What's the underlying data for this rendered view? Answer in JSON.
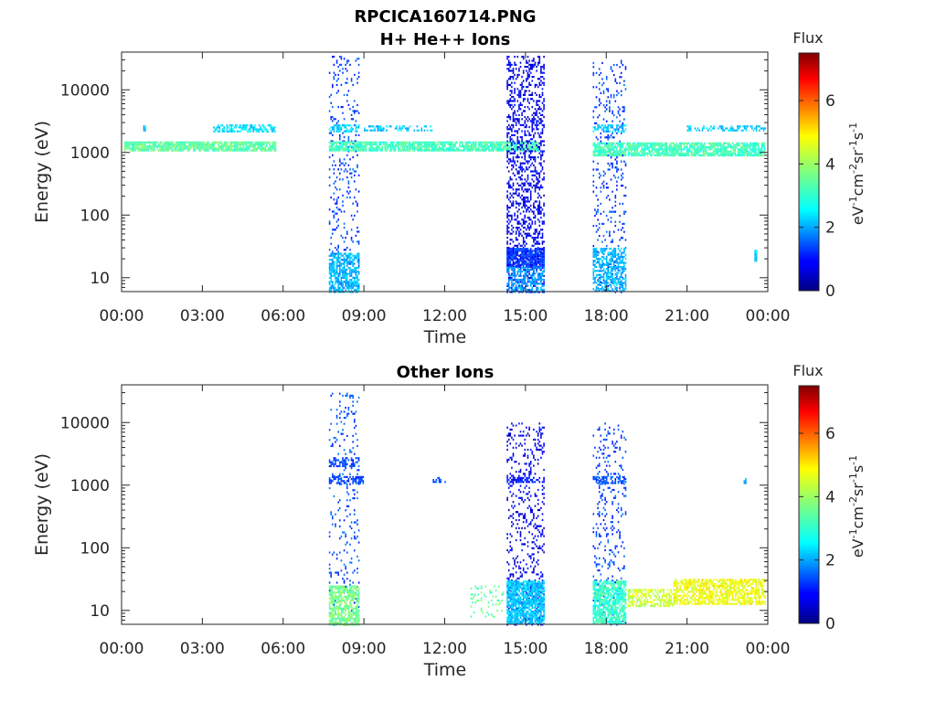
{
  "figure": {
    "title": "RPCICA160714.PNG",
    "colors": {
      "axis": "#262626",
      "background": "#ffffff",
      "colormap": "jet"
    }
  },
  "colorbar": {
    "title": "Flux",
    "unit_base": [
      "eV",
      "cm",
      "sr",
      "s"
    ],
    "unit_exponents": [
      "-1",
      "-2",
      "-1",
      "-1"
    ],
    "ticks": [
      "0",
      "2",
      "4",
      "6"
    ]
  },
  "chart_data": [
    {
      "type": "heatmap",
      "title": "H+ He++ Ions",
      "xlabel": "Time",
      "ylabel": "Energy (eV)",
      "x_ticks": [
        "00:00",
        "03:00",
        "06:00",
        "09:00",
        "12:00",
        "15:00",
        "18:00",
        "21:00",
        "00:00"
      ],
      "y_ticks": [
        "10",
        "100",
        "1000",
        "10000"
      ],
      "y_scale": "log",
      "xlim_hours": [
        0,
        24
      ],
      "ylim": [
        6,
        40000
      ],
      "clim": [
        0,
        7.5
      ],
      "colorbar_label": "Flux",
      "features": [
        {
          "t0": 0.1,
          "t1": 5.7,
          "e0": 1050,
          "e1": 1500,
          "v": 3.5,
          "density": 0.85
        },
        {
          "t0": 3.4,
          "t1": 5.7,
          "e0": 2200,
          "e1": 2800,
          "v": 2.6,
          "density": 0.6
        },
        {
          "t0": 0.8,
          "t1": 0.9,
          "e0": 2300,
          "e1": 2700,
          "v": 2.5,
          "density": 0.7
        },
        {
          "t0": 7.7,
          "t1": 8.8,
          "e0": 6,
          "e1": 35000,
          "v": 1.4,
          "density": 0.12
        },
        {
          "t0": 7.7,
          "t1": 8.8,
          "e0": 6,
          "e1": 25,
          "v": 2.3,
          "density": 0.7
        },
        {
          "t0": 7.7,
          "t1": 8.8,
          "e0": 2200,
          "e1": 2800,
          "v": 2.5,
          "density": 0.6
        },
        {
          "t0": 7.7,
          "t1": 15.5,
          "e0": 1050,
          "e1": 1500,
          "v": 3.3,
          "density": 0.85
        },
        {
          "t0": 9.0,
          "t1": 11.5,
          "e0": 2300,
          "e1": 2700,
          "v": 2.4,
          "density": 0.4
        },
        {
          "t0": 14.3,
          "t1": 15.7,
          "e0": 6,
          "e1": 35000,
          "v": 0.8,
          "density": 0.35
        },
        {
          "t0": 14.3,
          "t1": 15.7,
          "e0": 15,
          "e1": 30,
          "v": 1.3,
          "density": 0.85
        },
        {
          "t0": 14.3,
          "t1": 15.7,
          "e0": 6,
          "e1": 15,
          "v": 2.1,
          "density": 0.6
        },
        {
          "t0": 17.5,
          "t1": 18.7,
          "e0": 6,
          "e1": 30000,
          "v": 1.4,
          "density": 0.13
        },
        {
          "t0": 17.5,
          "t1": 18.7,
          "e0": 6,
          "e1": 30,
          "v": 2.3,
          "density": 0.6
        },
        {
          "t0": 17.5,
          "t1": 18.7,
          "e0": 2200,
          "e1": 2800,
          "v": 2.4,
          "density": 0.6
        },
        {
          "t0": 17.5,
          "t1": 23.9,
          "e0": 900,
          "e1": 1450,
          "v": 3.3,
          "density": 0.8
        },
        {
          "t0": 21.0,
          "t1": 23.9,
          "e0": 2300,
          "e1": 2700,
          "v": 2.5,
          "density": 0.45
        },
        {
          "t0": 23.5,
          "t1": 23.6,
          "e0": 18,
          "e1": 28,
          "v": 2.5,
          "density": 0.9
        }
      ]
    },
    {
      "type": "heatmap",
      "title": "Other Ions",
      "xlabel": "Time",
      "ylabel": "Energy (eV)",
      "x_ticks": [
        "00:00",
        "03:00",
        "06:00",
        "09:00",
        "12:00",
        "15:00",
        "18:00",
        "21:00",
        "00:00"
      ],
      "y_ticks": [
        "10",
        "100",
        "1000",
        "10000"
      ],
      "y_scale": "log",
      "xlim_hours": [
        0,
        24
      ],
      "ylim": [
        6,
        40000
      ],
      "clim": [
        0,
        7.5
      ],
      "colorbar_label": "Flux",
      "features": [
        {
          "t0": 7.7,
          "t1": 8.8,
          "e0": 6,
          "e1": 30000,
          "v": 1.5,
          "density": 0.1
        },
        {
          "t0": 7.7,
          "t1": 8.8,
          "e0": 2000,
          "e1": 2800,
          "v": 1.4,
          "density": 0.5
        },
        {
          "t0": 7.7,
          "t1": 9.0,
          "e0": 1100,
          "e1": 1400,
          "v": 1.4,
          "density": 0.6
        },
        {
          "t0": 7.7,
          "t1": 8.8,
          "e0": 6,
          "e1": 25,
          "v": 3.7,
          "density": 0.75
        },
        {
          "t0": 11.5,
          "t1": 12.2,
          "e0": 1100,
          "e1": 1350,
          "v": 1.6,
          "density": 0.3
        },
        {
          "t0": 12.9,
          "t1": 14.2,
          "e0": 8,
          "e1": 25,
          "v": 3.5,
          "density": 0.15
        },
        {
          "t0": 14.3,
          "t1": 15.7,
          "e0": 6,
          "e1": 10000,
          "v": 0.8,
          "density": 0.18
        },
        {
          "t0": 14.3,
          "t1": 15.7,
          "e0": 1100,
          "e1": 1350,
          "v": 1.1,
          "density": 0.6
        },
        {
          "t0": 14.3,
          "t1": 15.7,
          "e0": 6,
          "e1": 30,
          "v": 2.4,
          "density": 0.85
        },
        {
          "t0": 17.5,
          "t1": 18.7,
          "e0": 6,
          "e1": 10000,
          "v": 1.4,
          "density": 0.13
        },
        {
          "t0": 17.5,
          "t1": 18.7,
          "e0": 1100,
          "e1": 1400,
          "v": 1.5,
          "density": 0.6
        },
        {
          "t0": 17.5,
          "t1": 18.7,
          "e0": 6,
          "e1": 30,
          "v": 3.2,
          "density": 0.8
        },
        {
          "t0": 18.8,
          "t1": 20.5,
          "e0": 12,
          "e1": 22,
          "v": 4.3,
          "density": 0.6
        },
        {
          "t0": 20.5,
          "t1": 23.9,
          "e0": 13,
          "e1": 32,
          "v": 4.6,
          "density": 0.7
        },
        {
          "t0": 23.1,
          "t1": 23.2,
          "e0": 1100,
          "e1": 1300,
          "v": 2.0,
          "density": 0.9
        }
      ]
    }
  ]
}
